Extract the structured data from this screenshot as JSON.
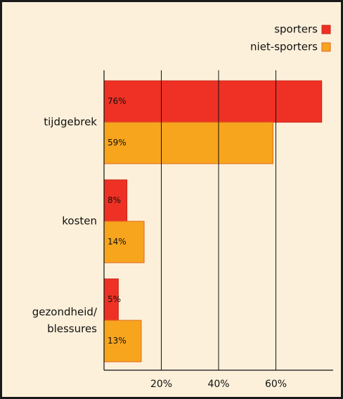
{
  "chart_data": {
    "type": "bar",
    "orientation": "horizontal",
    "categories": [
      "tijdgebrek",
      "kosten",
      "gezondheid/ blessures"
    ],
    "series": [
      {
        "name": "sporters",
        "color": "#ee3124",
        "values": [
          76,
          8,
          5
        ],
        "value_labels": [
          "76%",
          "8%",
          "5%"
        ]
      },
      {
        "name": "niet-sporters",
        "color": "#f7a51d",
        "values": [
          59,
          14,
          13
        ],
        "value_labels": [
          "59%",
          "14%",
          "13%"
        ]
      }
    ],
    "xlim": [
      0,
      80
    ],
    "xticks": [
      {
        "value": 20,
        "label": "20%"
      },
      {
        "value": 40,
        "label": "40%"
      },
      {
        "value": 60,
        "label": "60%"
      }
    ],
    "grid": true,
    "legend": "top-right"
  }
}
